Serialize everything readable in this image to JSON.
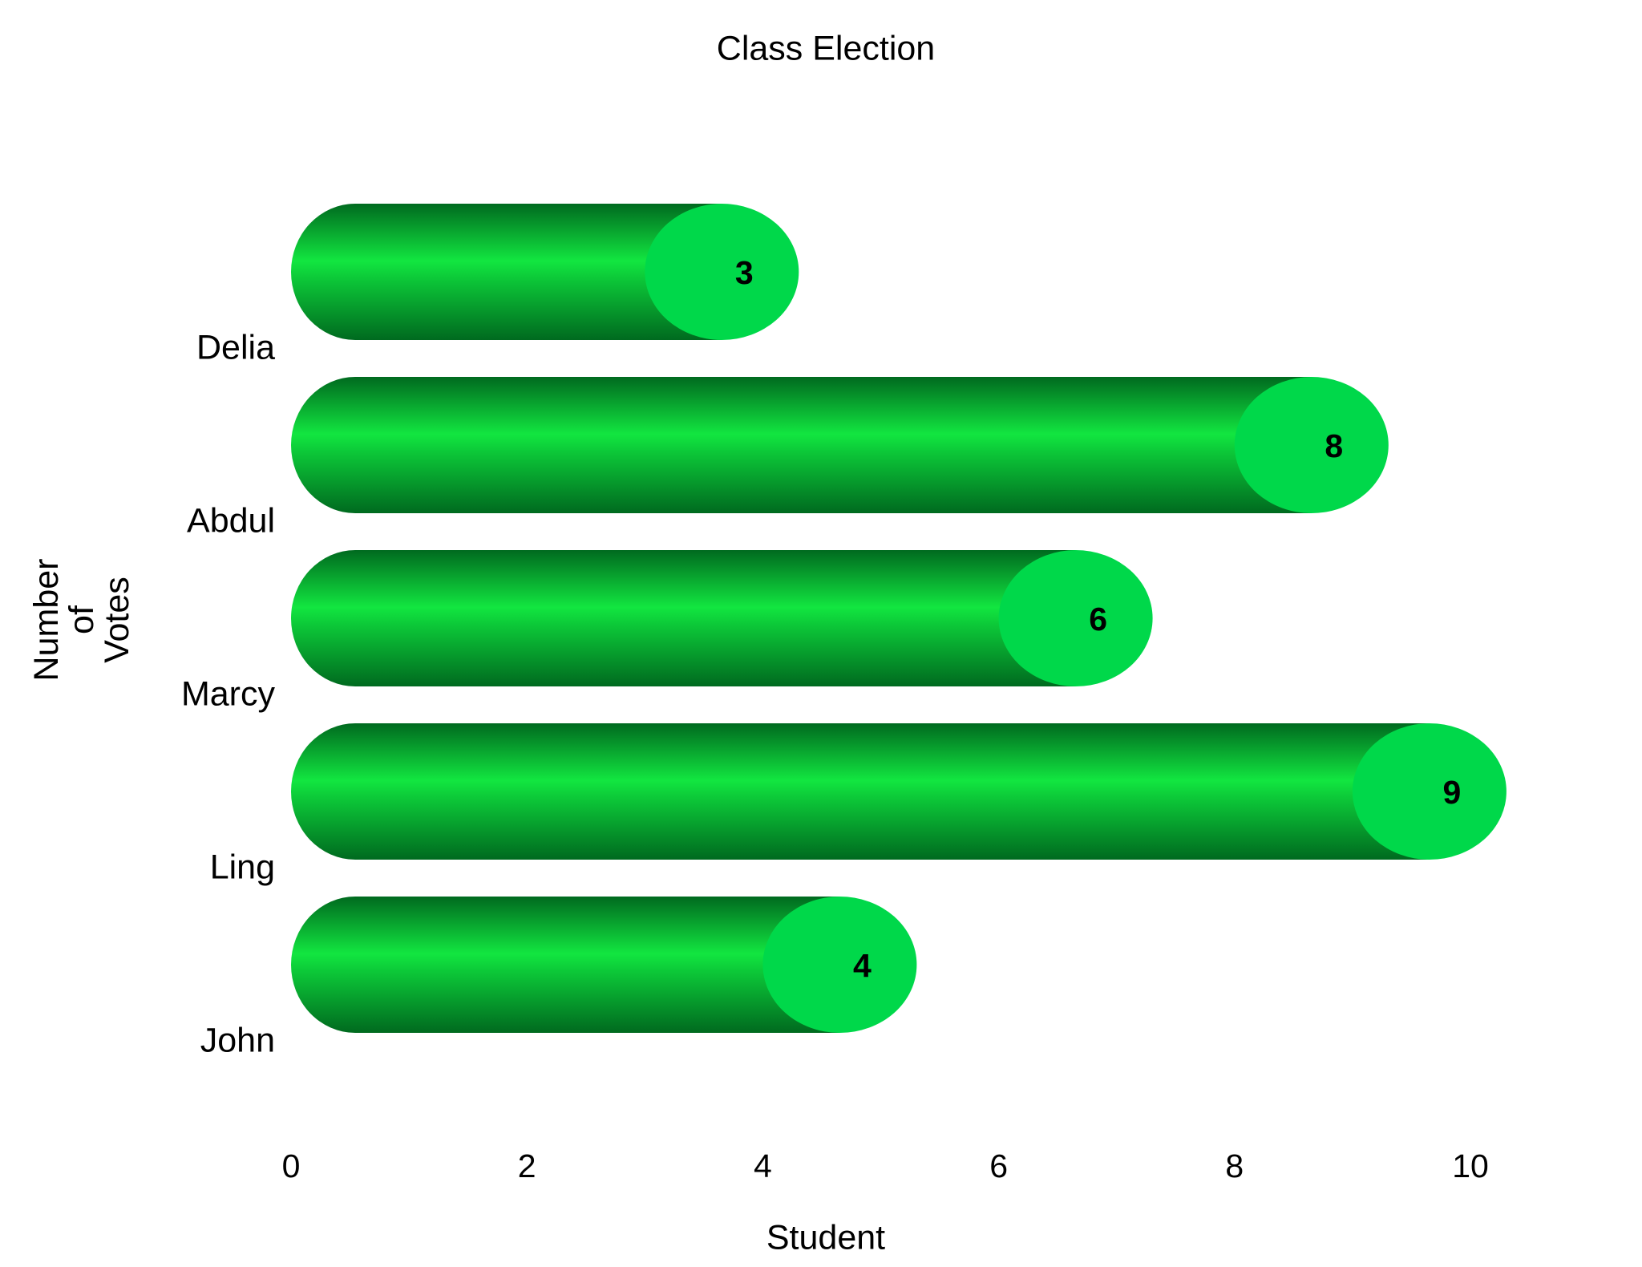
{
  "chart_data": {
    "type": "bar",
    "orientation": "horizontal",
    "title": "Class Election",
    "x_label": "Student",
    "y_label": "Number of Votes",
    "categories": [
      "Delia",
      "Abdul",
      "Marcy",
      "Ling",
      "John"
    ],
    "values": [
      3,
      8,
      6,
      9,
      4
    ],
    "color": "#00d84a",
    "xlim": [
      0,
      10
    ],
    "xticks": [
      0,
      2,
      4,
      6,
      8,
      10
    ],
    "grid": false
  }
}
